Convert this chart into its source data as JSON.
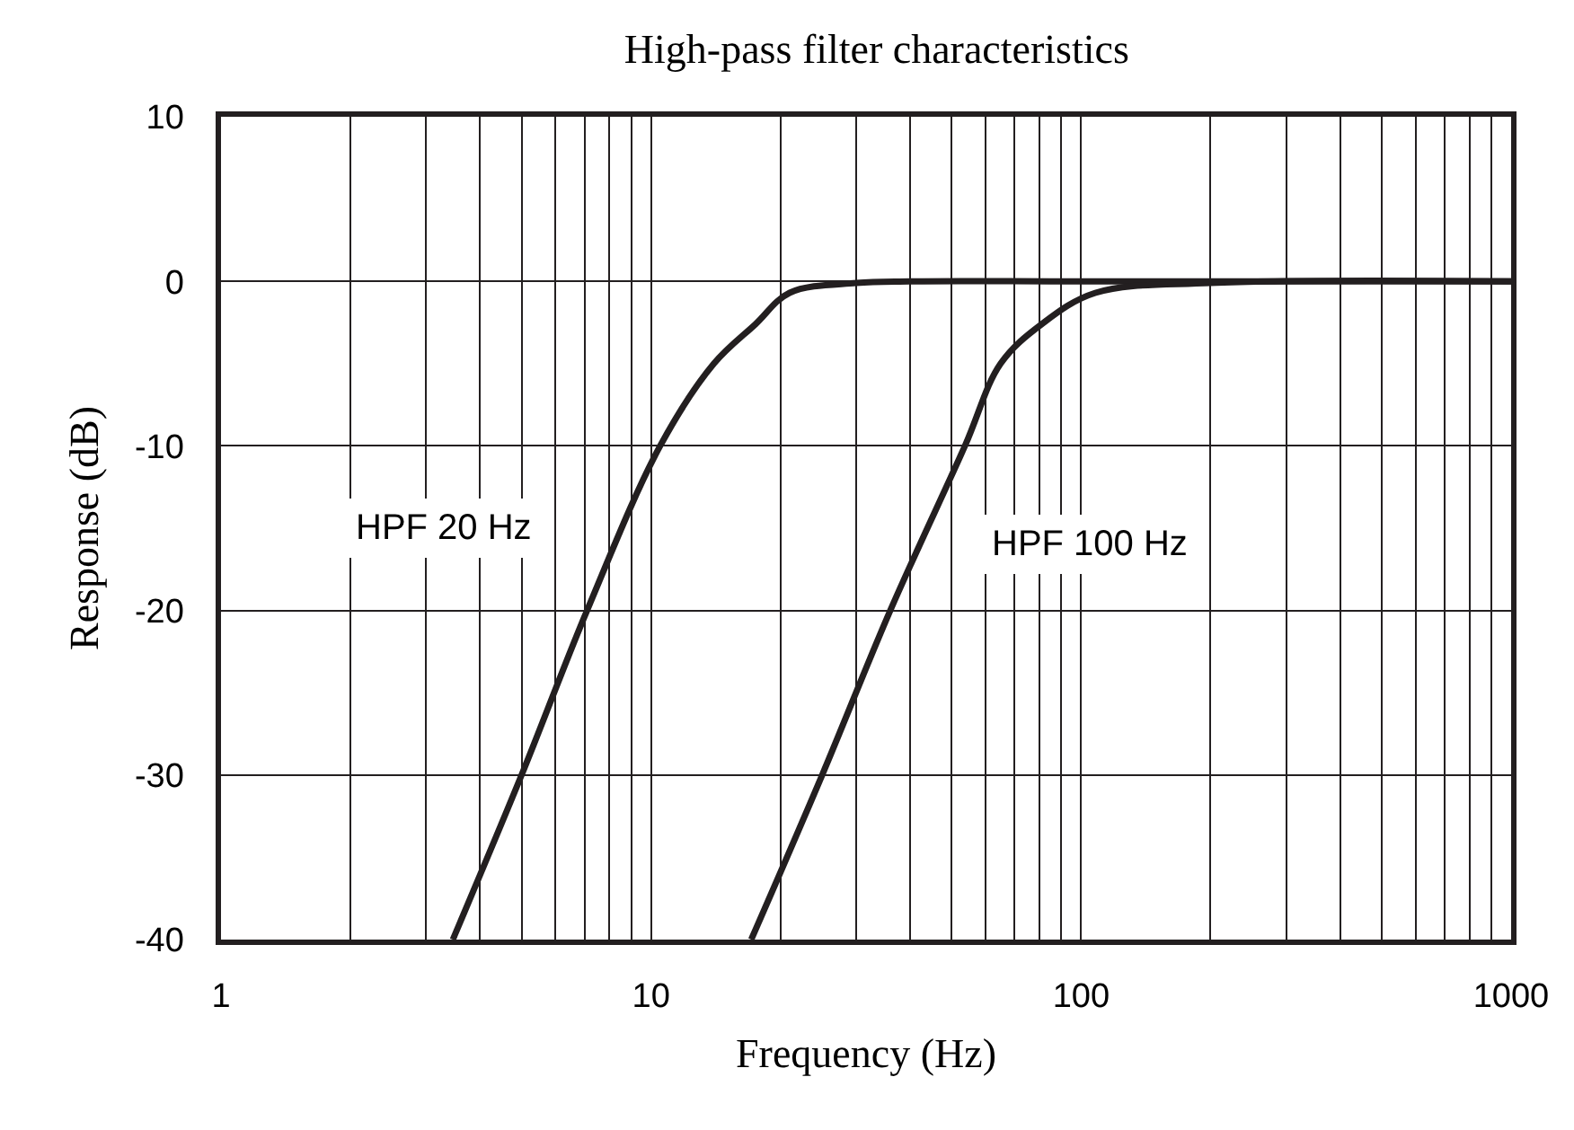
{
  "chart_data": {
    "type": "line",
    "title": "High-pass filter characteristics",
    "xlabel": "Frequency (Hz)",
    "ylabel": "Response (dB)",
    "log": "x",
    "grid": true,
    "legend": false,
    "marker": "none",
    "line_style": "solid",
    "xlim": [
      1,
      1000
    ],
    "xticks": [
      1,
      10,
      100,
      1000
    ],
    "ylim": [
      -40,
      10
    ],
    "yticks": [
      -40,
      -30,
      -20,
      -10,
      0,
      10
    ],
    "series": [
      {
        "name": "HPF 20 Hz",
        "color": "#231f20",
        "x": [
          3.46,
          5,
          7.1,
          10.5,
          14,
          17.5,
          21,
          30,
          40,
          100,
          1000
        ],
        "values": [
          -40,
          -30,
          -20,
          -10,
          -5,
          -2.6,
          -0.7,
          -0.1,
          0,
          0,
          0
        ]
      },
      {
        "name": "HPF 100 Hz",
        "color": "#231f20",
        "x": [
          17.1,
          25,
          36,
          53.7,
          65,
          81,
          108,
          200,
          1000
        ],
        "values": [
          -40,
          -30,
          -20,
          -10,
          -5,
          -2.6,
          -0.7,
          -0.1,
          0
        ]
      }
    ]
  }
}
